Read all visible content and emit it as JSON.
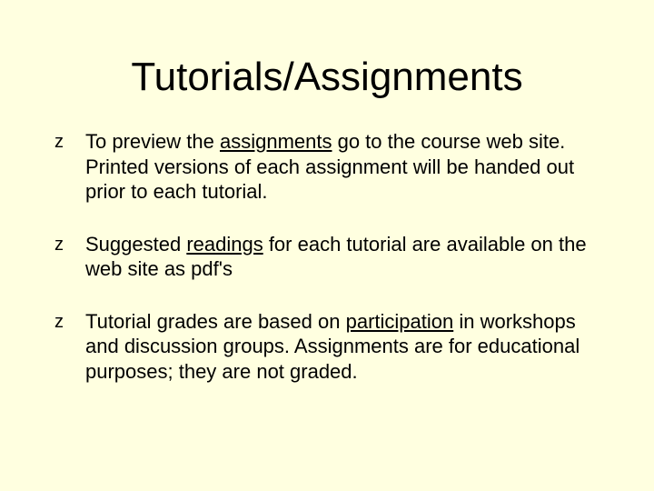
{
  "background_color": "#ffffe0",
  "text_color": "#000000",
  "title": {
    "text": "Tutorials/Assignments",
    "fontsize": 44
  },
  "bullet_marker": "z",
  "bullets": [
    {
      "pre": "To preview the ",
      "u1": "assignments",
      "mid": " go to the course web site.  Printed versions of each assignment will be handed out prior to each tutorial.",
      "u2": "",
      "post": ""
    },
    {
      "pre": "Suggested ",
      "u1": "readings",
      "mid": " for each tutorial are available on the web site as pdf's",
      "u2": "",
      "post": ""
    },
    {
      "pre": "Tutorial grades are based on ",
      "u1": "participation",
      "mid": " in workshops and discussion groups.  Assignments are for educational purposes; they are not graded.",
      "u2": "",
      "post": ""
    }
  ]
}
